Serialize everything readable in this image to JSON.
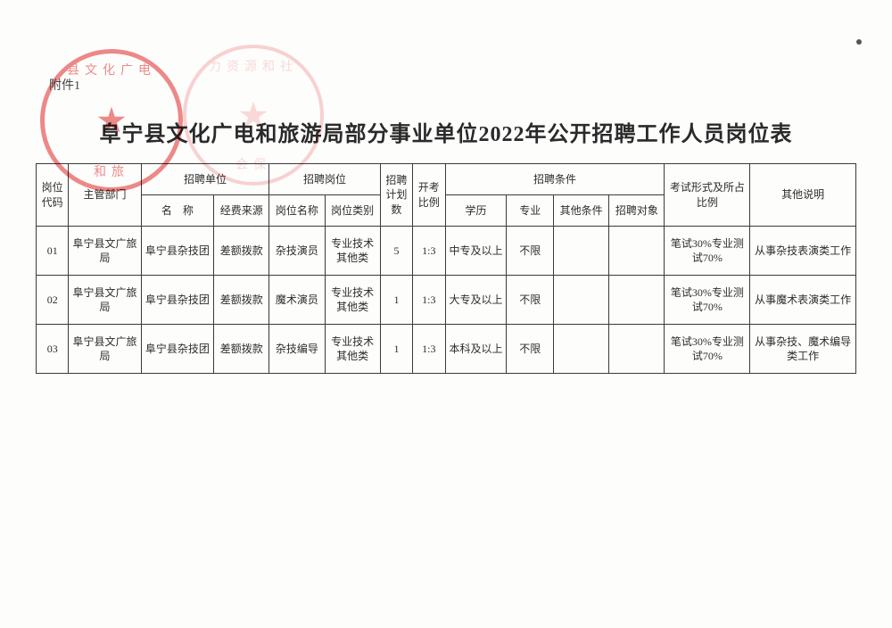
{
  "attachment_label": "附件1",
  "title": "阜宁县文化广电和旅游局部分事业单位2022年公开招聘工作人员岗位表",
  "header": {
    "pos_code": "岗位代码",
    "dept": "主管部门",
    "unit_group": "招聘单位",
    "unit_name": "名　称",
    "unit_fund": "经费来源",
    "post_group": "招聘岗位",
    "post_name": "岗位名称",
    "post_type": "岗位类别",
    "plan": "招聘计划数",
    "ratio": "开考比例",
    "cond_group": "招聘条件",
    "cond_edu": "学历",
    "cond_major": "专业",
    "cond_other": "其他条件",
    "cond_target": "招聘对象",
    "exam": "考试形式及所占比例",
    "note": "其他说明"
  },
  "rows": [
    {
      "code": "01",
      "dept": "阜宁县文广旅局",
      "unit": "阜宁县杂技团",
      "fund": "差额拨款",
      "post": "杂技演员",
      "ptype": "专业技术其他类",
      "plan": "5",
      "ratio": "1:3",
      "edu": "中专及以上",
      "major": "不限",
      "other": "",
      "target": "",
      "exam": "笔试30%专业测试70%",
      "note": "从事杂技表演类工作"
    },
    {
      "code": "02",
      "dept": "阜宁县文广旅局",
      "unit": "阜宁县杂技团",
      "fund": "差额拨款",
      "post": "魔术演员",
      "ptype": "专业技术其他类",
      "plan": "1",
      "ratio": "1:3",
      "edu": "大专及以上",
      "major": "不限",
      "other": "",
      "target": "",
      "exam": "笔试30%专业测试70%",
      "note": "从事魔术表演类工作"
    },
    {
      "code": "03",
      "dept": "阜宁县文广旅局",
      "unit": "阜宁县杂技团",
      "fund": "差额拨款",
      "post": "杂技编导",
      "ptype": "专业技术其他类",
      "plan": "1",
      "ratio": "1:3",
      "edu": "本科及以上",
      "major": "不限",
      "other": "",
      "target": "",
      "exam": "笔试30%专业测试70%",
      "note": "从事杂技、魔术编导类工作"
    }
  ],
  "stamps": {
    "s1_top": "县文化广电",
    "s1_bot": "和旅",
    "s2_top": "力资源和社",
    "s2_bot": "会保"
  },
  "table_style": {
    "border_color": "#3a3a3a",
    "font_size": 12,
    "col_widths_pct": [
      3.8,
      8.5,
      8.5,
      6.5,
      6.5,
      6.5,
      3.8,
      3.8,
      7.2,
      5.5,
      6.5,
      6.5,
      10,
      12.4
    ]
  }
}
